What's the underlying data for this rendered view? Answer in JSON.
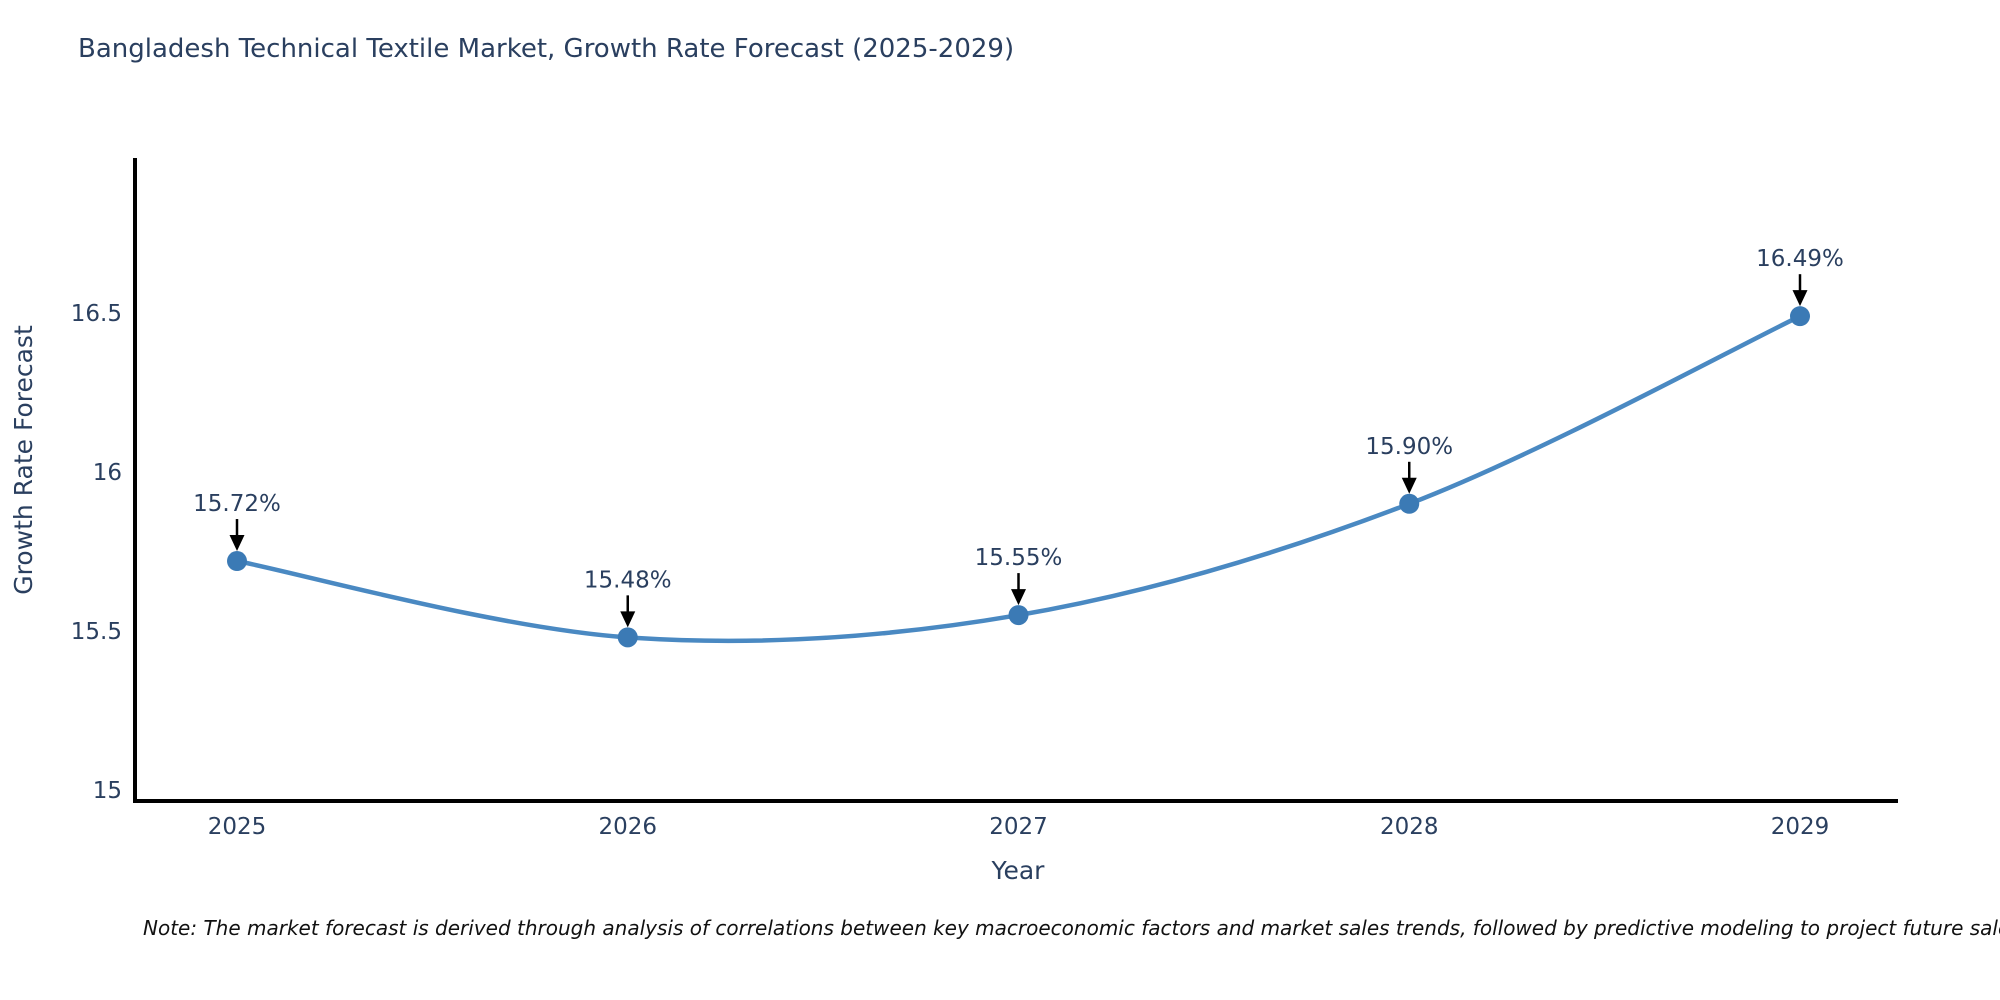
{
  "page": {
    "note": "Note: The market forecast is derived through analysis of correlations between key macroeconomic factors and market sales trends, followed by predictive modeling to project future sales"
  },
  "chart_data": {
    "type": "line",
    "title": "Bangladesh Technical Textile Market, Growth Rate Forecast (2025-2029)",
    "xlabel": "Year",
    "ylabel": "Growth Rate Forecast",
    "categories": [
      "2025",
      "2026",
      "2027",
      "2028",
      "2029"
    ],
    "series": [
      {
        "name": "Growth Rate Forecast",
        "values": [
          15.72,
          15.48,
          15.55,
          15.9,
          16.49
        ]
      }
    ],
    "point_labels": [
      "15.72%",
      "15.48%",
      "15.55%",
      "15.90%",
      "16.49%"
    ],
    "yticks": [
      "15",
      "15.5",
      "16",
      "16.5"
    ],
    "ytick_values": [
      15,
      15.5,
      16,
      16.5
    ],
    "ylim": [
      14.97,
      17.0
    ],
    "line_shape": "spline",
    "grid": false,
    "legend": "none",
    "colors": {
      "line": "#4a89c2",
      "marker": "#3b7ab5",
      "axis": "#000000",
      "text": "#2a3f5f",
      "arrow": "#000000"
    }
  }
}
